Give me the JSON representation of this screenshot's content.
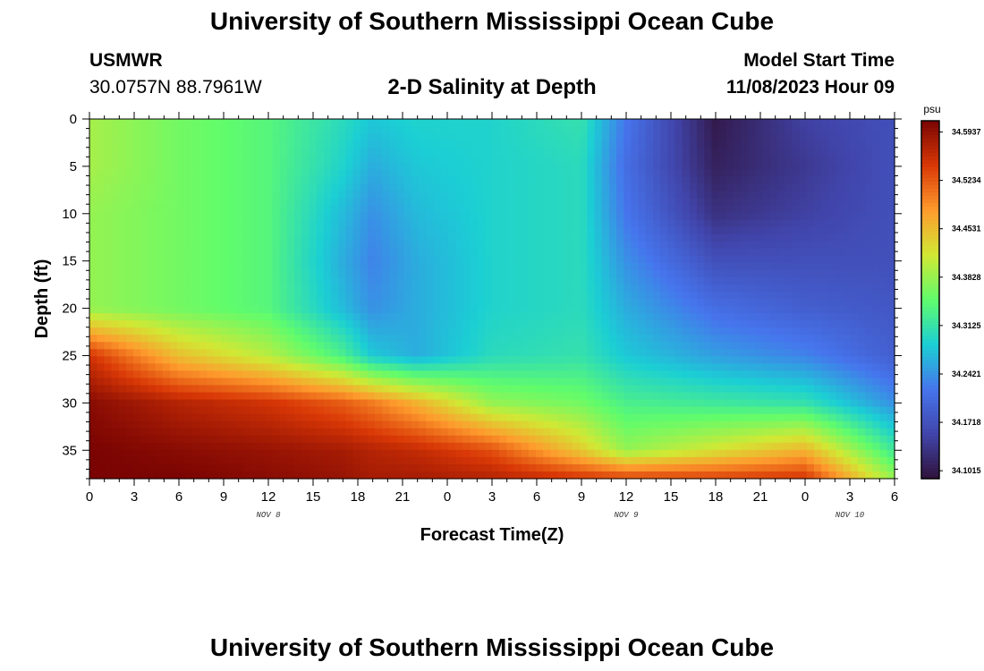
{
  "header": {
    "title": "University of Southern Mississippi Ocean Cube",
    "station": "USMWR",
    "coordinates": "30.0757N  88.7961W",
    "subtitle": "2-D Salinity at Depth",
    "model_start_label": "Model Start Time",
    "model_start_value": "11/08/2023 Hour 09"
  },
  "footer": {
    "title": "University of Southern Mississippi Ocean Cube"
  },
  "chart_data": {
    "type": "heatmap",
    "title": "2-D Salinity at Depth",
    "xlabel": "Forecast Time(Z)",
    "ylabel": "Depth (ft)",
    "x_range_hours": [
      0,
      54
    ],
    "y_range_ft": [
      0,
      38
    ],
    "y_inverted": true,
    "x_tick_labels": [
      "0",
      "3",
      "6",
      "9",
      "12",
      "15",
      "18",
      "21",
      "0",
      "3",
      "6",
      "9",
      "12",
      "15",
      "18",
      "21",
      "0",
      "3",
      "6"
    ],
    "y_ticks": [
      0,
      5,
      10,
      15,
      20,
      25,
      30,
      35
    ],
    "date_labels": [
      {
        "text": "NOV 8",
        "hour": 12
      },
      {
        "text": "NOV 9",
        "hour": 36
      },
      {
        "text": "NOV 10",
        "hour": 51
      }
    ],
    "colorbar": {
      "unit": "psu",
      "min": 34.09,
      "max": 34.61,
      "labels": [
        "34.5937",
        "34.5234",
        "34.4531",
        "34.3828",
        "34.3125",
        "34.2421",
        "34.1718",
        "34.1015"
      ],
      "colors": [
        "#30123b",
        "#4145ab",
        "#4675ed",
        "#1bcfd4",
        "#61fc6c",
        "#d1e834",
        "#fe9b2d",
        "#d93806",
        "#7a0403"
      ]
    },
    "field": {
      "description_hours": "salinity (psu) sampled over forecast hour and depth",
      "hours": [
        0,
        6,
        12,
        17,
        19,
        22,
        27,
        33,
        36,
        42,
        48,
        54
      ],
      "depths_ft": [
        0,
        5,
        10,
        15,
        20,
        25,
        30,
        35,
        38
      ],
      "values": [
        [
          34.39,
          34.39,
          34.38,
          34.38,
          34.38,
          34.55,
          34.6,
          34.61,
          34.61
        ],
        [
          34.36,
          34.36,
          34.36,
          34.36,
          34.36,
          34.45,
          34.57,
          34.6,
          34.61
        ],
        [
          34.34,
          34.34,
          34.34,
          34.34,
          34.34,
          34.4,
          34.55,
          34.59,
          34.6
        ],
        [
          34.3,
          34.29,
          34.27,
          34.26,
          34.27,
          34.33,
          34.52,
          34.58,
          34.59
        ],
        [
          34.28,
          34.26,
          34.24,
          34.23,
          34.24,
          34.28,
          34.5,
          34.57,
          34.58
        ],
        [
          34.29,
          34.28,
          34.27,
          34.26,
          34.26,
          34.26,
          34.46,
          34.56,
          34.58
        ],
        [
          34.29,
          34.29,
          34.29,
          34.29,
          34.29,
          34.3,
          34.38,
          34.53,
          34.57
        ],
        [
          34.31,
          34.3,
          34.3,
          34.3,
          34.3,
          34.31,
          34.36,
          34.44,
          34.55
        ],
        [
          34.22,
          34.21,
          34.22,
          34.24,
          34.26,
          34.28,
          34.33,
          34.38,
          34.54
        ],
        [
          34.1,
          34.11,
          34.13,
          34.17,
          34.21,
          34.25,
          34.32,
          34.42,
          34.54
        ],
        [
          34.15,
          34.14,
          34.15,
          34.17,
          34.19,
          34.23,
          34.31,
          34.46,
          34.55
        ],
        [
          34.17,
          34.17,
          34.17,
          34.17,
          34.18,
          34.19,
          34.24,
          34.32,
          34.38
        ]
      ]
    }
  }
}
